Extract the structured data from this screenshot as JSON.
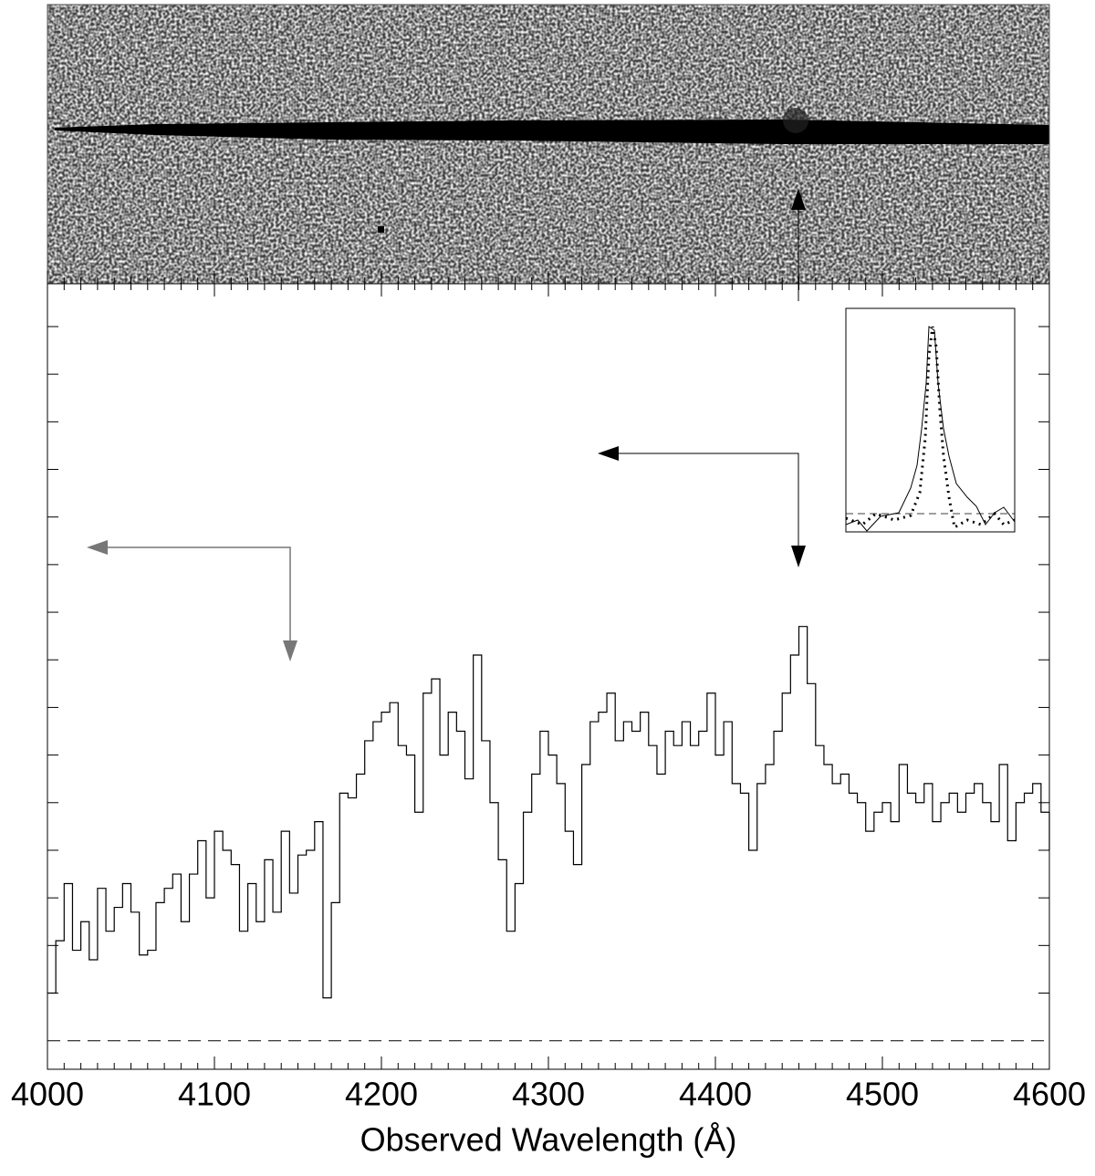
{
  "chart_data": {
    "type": "step",
    "xlabel": "Observed Wavelength (Å)",
    "xlim": [
      4000,
      4600
    ],
    "xticks": [
      4000,
      4100,
      4200,
      4300,
      4400,
      4500,
      4600
    ],
    "ylim": [
      -0.6,
      15.9
    ],
    "yticks": [
      1,
      2,
      3,
      4,
      5,
      6,
      7,
      8,
      9,
      10,
      11,
      12,
      13,
      14,
      15
    ],
    "color": "#000000",
    "x": [
      4000,
      4005,
      4010,
      4015,
      4020,
      4025,
      4030,
      4035,
      4040,
      4045,
      4050,
      4055,
      4060,
      4065,
      4070,
      4075,
      4080,
      4085,
      4090,
      4095,
      4100,
      4105,
      4110,
      4115,
      4120,
      4125,
      4130,
      4135,
      4140,
      4145,
      4150,
      4155,
      4160,
      4165,
      4170,
      4175,
      4180,
      4185,
      4190,
      4195,
      4200,
      4205,
      4210,
      4215,
      4220,
      4225,
      4230,
      4235,
      4240,
      4245,
      4250,
      4255,
      4260,
      4265,
      4270,
      4275,
      4280,
      4285,
      4290,
      4295,
      4300,
      4305,
      4310,
      4315,
      4320,
      4325,
      4330,
      4335,
      4340,
      4345,
      4350,
      4355,
      4360,
      4365,
      4370,
      4375,
      4380,
      4385,
      4390,
      4395,
      4400,
      4405,
      4410,
      4415,
      4420,
      4425,
      4430,
      4435,
      4440,
      4445,
      4450,
      4455,
      4460,
      4465,
      4470,
      4475,
      4480,
      4485,
      4490,
      4495,
      4500,
      4505,
      4510,
      4515,
      4520,
      4525,
      4530,
      4535,
      4540,
      4545,
      4550,
      4555,
      4560,
      4565,
      4570,
      4575,
      4580,
      4585,
      4590,
      4595,
      4600
    ],
    "values": [
      1.0,
      2.1,
      3.3,
      1.9,
      2.5,
      1.7,
      3.2,
      2.3,
      2.8,
      3.3,
      2.7,
      1.8,
      1.9,
      2.9,
      3.2,
      3.5,
      2.5,
      3.5,
      4.2,
      3.0,
      4.4,
      4.0,
      3.7,
      2.3,
      3.3,
      2.5,
      3.8,
      2.7,
      4.4,
      3.1,
      3.9,
      4.0,
      4.6,
      0.9,
      2.9,
      5.2,
      5.1,
      5.6,
      6.3,
      6.7,
      6.9,
      7.1,
      6.2,
      6.0,
      4.8,
      7.3,
      7.6,
      6.0,
      6.9,
      6.5,
      5.5,
      8.1,
      6.3,
      5.0,
      3.8,
      2.3,
      3.3,
      4.8,
      5.6,
      6.5,
      6.0,
      5.4,
      4.4,
      3.7,
      5.8,
      6.7,
      6.9,
      7.3,
      6.3,
      6.7,
      6.5,
      6.9,
      6.2,
      5.6,
      6.5,
      6.2,
      6.7,
      6.2,
      6.5,
      7.3,
      6.0,
      6.7,
      5.4,
      5.2,
      4.0,
      5.4,
      5.8,
      6.5,
      7.3,
      8.1,
      8.7,
      7.5,
      6.2,
      5.8,
      5.4,
      5.6,
      5.2,
      5.0,
      4.4,
      4.8,
      5.0,
      4.6,
      5.8,
      5.2,
      5.0,
      5.4,
      4.6,
      5.0,
      5.2,
      4.8,
      5.2,
      5.4,
      5.0,
      4.6,
      5.8,
      4.2,
      5.0,
      5.2,
      5.4,
      4.8,
      4.0
    ]
  }
}
